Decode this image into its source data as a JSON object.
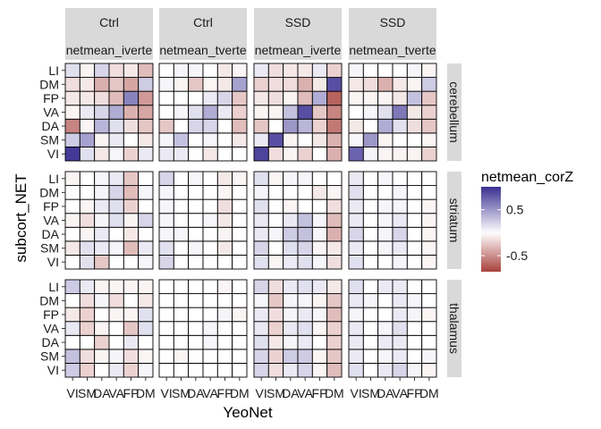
{
  "chart_data": {
    "type": "heatmap",
    "x_label": "YeoNet",
    "y_label": "subcort_NET",
    "x_categories": [
      "VI",
      "SM",
      "DA",
      "VA",
      "FP",
      "DM"
    ],
    "x_tick_text": [
      "VI",
      "SM",
      "DA",
      "VA",
      "FP",
      "DM"
    ],
    "y_categories": [
      "VI",
      "SM",
      "DA",
      "VA",
      "FP",
      "DM",
      "LI"
    ],
    "column_strips": [
      {
        "group": "Ctrl",
        "measure": "netmean_iverte"
      },
      {
        "group": "Ctrl",
        "measure": "netmean_tverte"
      },
      {
        "group": "SSD",
        "measure": "netmean_iverte"
      },
      {
        "group": "SSD",
        "measure": "netmean_tverte"
      }
    ],
    "row_strips": [
      "cerebellum",
      "striatum",
      "thalamus"
    ],
    "legend": {
      "title": "netmean_corZ",
      "labels": [
        {
          "value": 0.5,
          "text": "0.5"
        },
        {
          "value": -0.5,
          "text": "-0.5"
        }
      ],
      "range": [
        -0.85,
        1.0
      ],
      "low_color": "#a8413c",
      "mid_color": "#ffffff",
      "high_color": "#3a2f91"
    },
    "panels": [
      [
        [
          [
            0.95,
            0.15,
            -0.1,
            0.05,
            -0.2,
            0.1
          ],
          [
            0.25,
            0.45,
            -0.05,
            0.1,
            0.0,
            -0.1
          ],
          [
            -0.55,
            -0.05,
            0.35,
            0.15,
            -0.15,
            -0.25
          ],
          [
            -0.05,
            0.1,
            0.2,
            0.4,
            -0.35,
            -0.4
          ],
          [
            -0.1,
            -0.1,
            -0.15,
            -0.3,
            0.6,
            -0.45
          ],
          [
            -0.15,
            -0.1,
            -0.35,
            -0.25,
            -0.4,
            0.25
          ],
          [
            0.15,
            -0.05,
            0.2,
            -0.15,
            -0.1,
            -0.3
          ]
        ],
        [
          [
            0.0,
            0.15,
            -0.25,
            0.0,
            0.0,
            0.05
          ],
          [
            -0.1,
            0.15,
            0.1,
            0.05,
            -0.3,
            0.1
          ],
          [
            0.0,
            -0.05,
            0.1,
            0.0,
            -0.1,
            0.0
          ],
          [
            -0.05,
            -0.15,
            0.05,
            0.15,
            -0.05,
            0.2
          ],
          [
            0.0,
            -0.05,
            0.1,
            0.15,
            -0.2,
            0.0
          ],
          [
            0.0,
            0.0,
            0.05,
            0.2,
            -0.3,
            0.05
          ],
          [
            -0.05,
            0.0,
            0.05,
            0.1,
            -0.25,
            0.0
          ]
        ],
        [
          [
            0.25,
            -0.2,
            0.0,
            0.1,
            -0.2,
            0.05
          ],
          [
            0.3,
            -0.15,
            -0.05,
            0.05,
            -0.15,
            -0.05
          ],
          [
            0.0,
            0.0,
            -0.2,
            0.0,
            0.1,
            0.0
          ],
          [
            0.1,
            -0.2,
            -0.05,
            0.0,
            -0.25,
            0.15
          ],
          [
            -0.1,
            -0.2,
            0.0,
            -0.05,
            -0.05,
            0.15
          ],
          [
            0.0,
            -0.15,
            0.05,
            -0.15,
            0.0,
            -0.1
          ],
          [
            0.25,
            0.1,
            -0.05,
            -0.05,
            -0.05,
            -0.05
          ]
        ]
      ],
      [
        [
          [
            0.1,
            0.1,
            0.0,
            -0.1,
            0.0,
            0.0
          ],
          [
            0.05,
            0.3,
            0.0,
            0.05,
            0.0,
            -0.1
          ],
          [
            -0.25,
            0.0,
            0.2,
            0.2,
            0.0,
            -0.3
          ],
          [
            0.0,
            0.05,
            0.15,
            0.4,
            0.1,
            -0.2
          ],
          [
            0.0,
            0.0,
            0.0,
            0.1,
            0.2,
            -0.25
          ],
          [
            0.05,
            -0.05,
            -0.25,
            -0.05,
            -0.1,
            0.45
          ],
          [
            0.0,
            0.05,
            0.05,
            0.0,
            -0.1,
            -0.05
          ]
        ],
        [
          [
            0.2,
            0.0,
            0.0,
            0.0,
            0.0,
            0.0
          ],
          [
            0.15,
            0.0,
            0.05,
            0.0,
            -0.1,
            0.0
          ],
          [
            0.05,
            0.05,
            0.0,
            0.0,
            -0.05,
            0.0
          ],
          [
            0.05,
            0.0,
            0.0,
            0.05,
            -0.1,
            0.0
          ],
          [
            0.05,
            0.0,
            0.0,
            0.0,
            -0.15,
            0.0
          ],
          [
            0.05,
            0.0,
            0.0,
            0.0,
            -0.05,
            0.0
          ],
          [
            0.2,
            0.0,
            0.05,
            0.0,
            -0.1,
            -0.05
          ]
        ],
        [
          [
            0.0,
            0.0,
            0.0,
            0.0,
            0.0,
            0.0
          ],
          [
            0.0,
            -0.05,
            0.0,
            0.0,
            0.0,
            0.0
          ],
          [
            0.0,
            0.0,
            0.0,
            0.05,
            0.0,
            0.0
          ],
          [
            0.0,
            0.0,
            0.0,
            0.05,
            0.0,
            0.0
          ],
          [
            0.0,
            0.0,
            0.0,
            0.0,
            0.05,
            -0.05
          ],
          [
            0.0,
            0.0,
            0.0,
            0.0,
            0.0,
            0.0
          ],
          [
            0.0,
            0.0,
            0.0,
            0.0,
            -0.05,
            0.0
          ]
        ]
      ],
      [
        [
          [
            0.9,
            -0.15,
            -0.05,
            -0.2,
            0.0,
            -0.35
          ],
          [
            0.1,
            0.85,
            -0.05,
            0.0,
            -0.1,
            -0.35
          ],
          [
            -0.25,
            0.0,
            0.5,
            0.35,
            -0.2,
            -0.6
          ],
          [
            -0.05,
            -0.05,
            0.3,
            0.85,
            -0.25,
            -0.55
          ],
          [
            -0.1,
            -0.15,
            -0.05,
            -0.3,
            0.4,
            -0.7
          ],
          [
            -0.2,
            -0.15,
            -0.15,
            -0.35,
            -0.1,
            0.85
          ],
          [
            0.1,
            -0.15,
            -0.1,
            -0.1,
            0.1,
            -0.2
          ]
        ],
        [
          [
            0.15,
            -0.05,
            0.1,
            0.15,
            0.05,
            -0.15
          ],
          [
            0.2,
            0.0,
            0.15,
            0.2,
            -0.05,
            -0.1
          ],
          [
            0.1,
            0.05,
            0.25,
            0.3,
            0.05,
            -0.35
          ],
          [
            0.1,
            0.0,
            0.1,
            0.3,
            0.05,
            -0.3
          ],
          [
            0.15,
            0.0,
            -0.05,
            0.0,
            0.0,
            -0.15
          ],
          [
            0.05,
            0.0,
            0.0,
            0.0,
            -0.1,
            -0.05
          ],
          [
            0.15,
            -0.05,
            0.05,
            0.05,
            0.0,
            0.0
          ]
        ],
        [
          [
            0.2,
            -0.15,
            0.1,
            0.2,
            -0.05,
            -0.3
          ],
          [
            0.2,
            -0.2,
            0.25,
            0.25,
            -0.05,
            -0.25
          ],
          [
            0.15,
            -0.1,
            0.05,
            0.1,
            0.0,
            -0.2
          ],
          [
            0.1,
            -0.2,
            0.1,
            0.15,
            -0.05,
            -0.2
          ],
          [
            0.1,
            -0.15,
            0.05,
            0.1,
            0.05,
            -0.3
          ],
          [
            0.05,
            -0.25,
            0.05,
            0.05,
            -0.05,
            -0.25
          ],
          [
            0.2,
            -0.15,
            0.1,
            0.15,
            0.1,
            -0.1
          ]
        ]
      ],
      [
        [
          [
            0.75,
            0.05,
            -0.05,
            -0.05,
            -0.05,
            -0.2
          ],
          [
            0.05,
            0.5,
            -0.05,
            0.0,
            0.0,
            -0.05
          ],
          [
            -0.1,
            0.0,
            0.4,
            0.15,
            -0.15,
            -0.25
          ],
          [
            0.0,
            0.05,
            0.15,
            0.65,
            -0.1,
            -0.2
          ],
          [
            -0.05,
            -0.05,
            -0.05,
            -0.1,
            0.3,
            -0.25
          ],
          [
            -0.1,
            -0.15,
            -0.35,
            -0.1,
            -0.05,
            0.25
          ],
          [
            0.05,
            0.0,
            0.0,
            0.0,
            0.05,
            -0.05
          ]
        ],
        [
          [
            0.15,
            0.0,
            0.0,
            0.05,
            0.0,
            -0.05
          ],
          [
            0.1,
            0.0,
            0.05,
            0.1,
            0.0,
            -0.05
          ],
          [
            0.2,
            0.0,
            0.05,
            0.2,
            0.0,
            -0.05
          ],
          [
            0.1,
            0.0,
            0.05,
            0.1,
            0.0,
            -0.05
          ],
          [
            0.1,
            0.0,
            0.05,
            0.05,
            0.0,
            -0.05
          ],
          [
            0.15,
            0.0,
            0.0,
            0.05,
            0.0,
            0.0
          ],
          [
            0.1,
            0.0,
            0.05,
            0.0,
            0.0,
            0.0
          ]
        ],
        [
          [
            0.15,
            0.0,
            0.1,
            0.2,
            0.05,
            -0.05
          ],
          [
            0.1,
            0.0,
            0.05,
            0.1,
            0.0,
            0.05
          ],
          [
            0.1,
            0.0,
            0.1,
            0.1,
            0.0,
            0.0
          ],
          [
            0.1,
            0.0,
            0.05,
            0.15,
            0.0,
            0.0
          ],
          [
            0.05,
            0.0,
            0.0,
            0.1,
            0.05,
            -0.05
          ],
          [
            0.1,
            0.05,
            0.0,
            0.1,
            0.05,
            0.0
          ],
          [
            0.15,
            0.0,
            0.1,
            0.1,
            0.0,
            0.0
          ]
        ]
      ]
    ]
  }
}
